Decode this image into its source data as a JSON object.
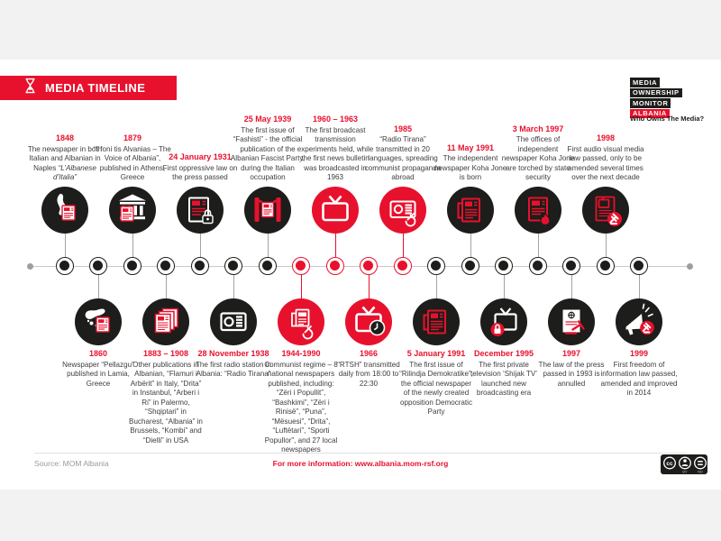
{
  "page": {
    "bg": "#f2f2f2",
    "card_bg": "#ffffff",
    "accent_red": "#e8112d",
    "black": "#1d1d1b"
  },
  "header": {
    "title": "MEDIA TIMELINE",
    "icon": "hourglass-icon"
  },
  "logo": {
    "lines": [
      "MEDIA",
      "OWNERSHIP",
      "MONITOR",
      "ALBANIA"
    ],
    "tagline": "Who Owns The Media?"
  },
  "footer": {
    "source": "Source: MOM Albania",
    "info": "For more information: www.albania.mom-rsf.org",
    "license": {
      "cc": "cc",
      "by": "BY",
      "nd": "ND"
    }
  },
  "timeline": {
    "events": [
      {
        "date": "1848",
        "text": "The newspaper in both Italian and Albanian in Naples",
        "em": "“L’Albanese d’Italia”",
        "color": "black",
        "icon": "italy-map-newspaper-icon"
      },
      {
        "date": "1860",
        "text": "Newspaper “Pellazgu” published in Lamia, Greece",
        "color": "black",
        "icon": "greece-map-newspaper-icon"
      },
      {
        "date": "1879",
        "text": "“I foni tis Alvanias – The Voice of Albania”, published in Athens, Greece",
        "color": "black",
        "icon": "temple-newspaper-icon"
      },
      {
        "date": "1883 – 1908",
        "text": "Other publications in Albanian, “Flamuri i Arbërit” in Italy, “Drita” in Instanbul, “Arberi i Ri” in Palermo, “Shqiptari” in Bucharest, “Albania” in Brussels, “Kombi” and “Dielli” in USA",
        "color": "black",
        "icon": "newspaper-stack-icon"
      },
      {
        "date": "24 January 1931",
        "text": "First oppressive law on the press passed",
        "color": "black",
        "icon": "newspaper-lock-icon"
      },
      {
        "date": "28 November 1938",
        "text": "The first radio station in Albania: “Radio Tirana”",
        "color": "black",
        "icon": "radio-icon"
      },
      {
        "date": "25 May 1939",
        "text": "The first issue of “Fashisti” - the official publication of the Albanian Fascist Party, during the Italian occupation",
        "color": "black",
        "icon": "fasces-newspaper-icon"
      },
      {
        "date": "1944-1990",
        "text": "Communist regime – 8 national newspapers published, including: “Zëri i Popullit”, “Bashkimi”, “Zëri i Rinisë”, “Puna”, “Mësuesi”, “Drita”, “Luftëtari”, “Sporti Popullor”, and 27 local newspapers",
        "color": "red",
        "icon": "press-communist-icon"
      },
      {
        "date": "1960 – 1963",
        "text": "The first broadcast transmission experiments held, while the first news bulletin was broadcasted in 1963",
        "color": "red",
        "icon": "tv-icon"
      },
      {
        "date": "1966",
        "text": "“RTSH” transmitted daily from 18:00 to 22:30",
        "color": "red",
        "icon": "tv-clock-icon"
      },
      {
        "date": "1985",
        "text": "“Radio Tirana” transmitted in 20 languages, spreading communist propaganda abroad",
        "color": "red",
        "icon": "radio-communist-icon"
      },
      {
        "date": "5 January 1991",
        "text": "The first issue of “Rilindja Demokratike”, the official newspaper of the newly created opposition Democratic Party",
        "color": "black",
        "icon": "newspaper-icon"
      },
      {
        "date": "11 May 1991",
        "text": "The independent newspaper Koha Jone is born",
        "color": "black",
        "icon": "newspaper-icon"
      },
      {
        "date": "December 1995",
        "text": "The first private television ‘Shijak TV’ launched new broadcasting era",
        "color": "black",
        "icon": "tv-broadcast-icon"
      },
      {
        "date": "3 March 1997",
        "text": "The offices of independent newspaper Koha Jone are torched by state security",
        "color": "black",
        "icon": "newspaper-fire-icon"
      },
      {
        "date": "1997",
        "text": "The law of the press passed in 1993 is annulled",
        "color": "black",
        "icon": "law-gavel-icon"
      },
      {
        "date": "1998",
        "text": "First audio visual media law passed, only to be amended several times over the next decade",
        "color": "black",
        "icon": "medialaw-tv-gavel-icon"
      },
      {
        "date": "1999",
        "text": "First freedom of information law passed, amended and improved in 2014",
        "color": "black",
        "icon": "megaphone-gavel-icon"
      }
    ]
  }
}
